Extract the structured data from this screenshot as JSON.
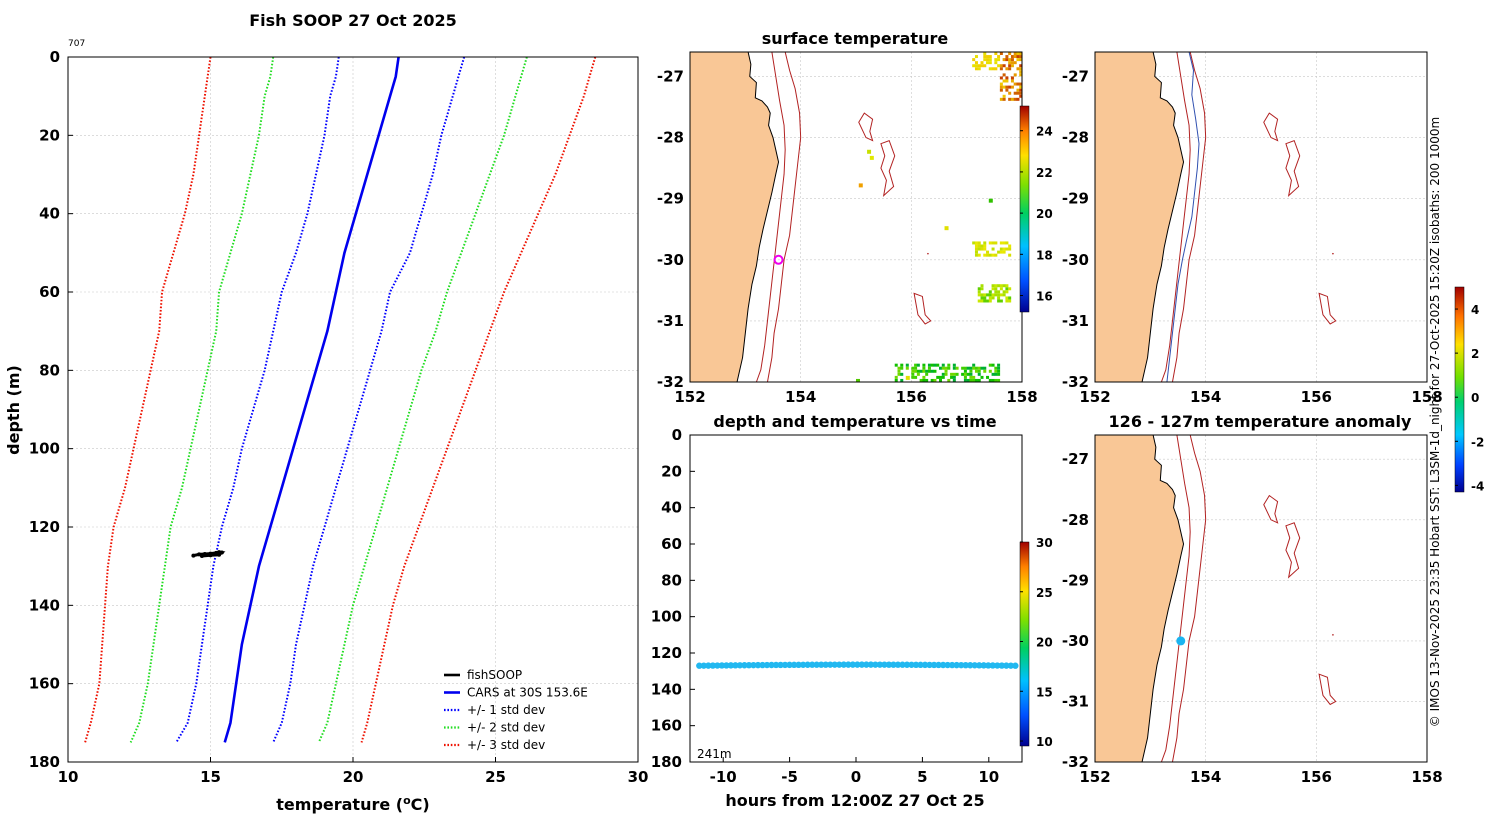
{
  "colors": {
    "land": "#F9C796",
    "coast": "#000000",
    "isobath": "#B22222",
    "cars": "#0000EE",
    "std1": "#0000FF",
    "std2": "#22DD22",
    "std3": "#EE1100",
    "fishsoop": "#000000",
    "marker_surface": "#EE00EE",
    "marker_anom": "#1AB4F0",
    "obs_track": "#22B8F0"
  },
  "chart_data": [
    {
      "id": "profile",
      "type": "line",
      "title": "Fish SOOP 27 Oct 2025",
      "corner_label": "707",
      "xlabel": "temperature (",
      "xlabel_unit_sup": "o",
      "xlabel_tail": "C)",
      "ylabel": "depth (m)",
      "xlim": [
        10,
        30
      ],
      "ylim": [
        0,
        180
      ],
      "y_reversed": true,
      "xticks": [
        10,
        15,
        20,
        25,
        30
      ],
      "yticks": [
        0,
        20,
        40,
        60,
        80,
        100,
        120,
        140,
        160,
        180
      ],
      "grid": true,
      "legend_position": "bottom-right",
      "depth": [
        0,
        5,
        10,
        20,
        30,
        40,
        50,
        60,
        70,
        80,
        90,
        100,
        110,
        120,
        130,
        140,
        150,
        160,
        170,
        175
      ],
      "series": [
        {
          "key": "m3",
          "name": "+/- 3 std dev",
          "style": "dotted",
          "color_key": "std3",
          "legend": true,
          "values": [
            15.0,
            14.9,
            14.8,
            14.6,
            14.4,
            14.1,
            13.7,
            13.3,
            13.2,
            12.9,
            12.6,
            12.3,
            12.0,
            11.6,
            11.4,
            11.3,
            11.2,
            11.1,
            10.8,
            10.6
          ]
        },
        {
          "key": "m2",
          "name": "+/- 2 std dev",
          "style": "dotted",
          "color_key": "std2",
          "legend": false,
          "values": [
            17.2,
            17.1,
            16.9,
            16.7,
            16.4,
            16.1,
            15.7,
            15.3,
            15.2,
            14.9,
            14.6,
            14.3,
            14.0,
            13.6,
            13.4,
            13.2,
            13.0,
            12.8,
            12.5,
            12.2
          ]
        },
        {
          "key": "m1",
          "name": "+/- 1 std dev",
          "style": "dotted",
          "color_key": "std1",
          "legend": false,
          "values": [
            19.5,
            19.4,
            19.2,
            19.0,
            18.7,
            18.4,
            18.0,
            17.5,
            17.2,
            16.9,
            16.5,
            16.1,
            15.8,
            15.4,
            15.1,
            14.9,
            14.7,
            14.5,
            14.2,
            13.8
          ]
        },
        {
          "key": "cars",
          "name": "CARS at 30S 153.6E",
          "style": "solid",
          "color_key": "cars",
          "legend": true,
          "values": [
            21.6,
            21.5,
            21.3,
            20.9,
            20.5,
            20.1,
            19.7,
            19.4,
            19.1,
            18.7,
            18.3,
            17.9,
            17.5,
            17.1,
            16.7,
            16.4,
            16.1,
            15.9,
            15.7,
            15.5
          ]
        },
        {
          "key": "p1",
          "name": "+/- 1 std dev",
          "style": "dotted",
          "color_key": "std1",
          "legend": true,
          "values": [
            23.9,
            23.7,
            23.5,
            23.1,
            22.8,
            22.4,
            22.0,
            21.3,
            21.0,
            20.6,
            20.2,
            19.8,
            19.4,
            19.0,
            18.6,
            18.3,
            18.0,
            17.8,
            17.5,
            17.2
          ]
        },
        {
          "key": "p2",
          "name": "+/- 2 std dev",
          "style": "dotted",
          "color_key": "std2",
          "legend": true,
          "values": [
            26.1,
            25.9,
            25.7,
            25.3,
            24.8,
            24.3,
            23.8,
            23.3,
            22.9,
            22.4,
            22.0,
            21.6,
            21.2,
            20.8,
            20.4,
            20.0,
            19.7,
            19.4,
            19.1,
            18.8
          ]
        },
        {
          "key": "p3",
          "name": "+/- 3 std dev",
          "style": "dotted",
          "color_key": "std3",
          "legend": true,
          "values": [
            28.5,
            28.3,
            28.1,
            27.6,
            27.1,
            26.5,
            25.9,
            25.3,
            24.8,
            24.3,
            23.8,
            23.3,
            22.8,
            22.3,
            21.8,
            21.4,
            21.1,
            20.8,
            20.5,
            20.3
          ]
        }
      ],
      "fishsoop": {
        "name": "fishSOOP",
        "color_key": "fishsoop",
        "points": [
          [
            14.4,
            127.3
          ],
          [
            14.6,
            127.0
          ],
          [
            14.8,
            126.9
          ],
          [
            15.0,
            126.8
          ],
          [
            15.2,
            126.6
          ],
          [
            15.3,
            126.4
          ],
          [
            15.4,
            126.5
          ],
          [
            15.3,
            127.1
          ],
          [
            15.0,
            127.2
          ],
          [
            14.7,
            127.4
          ]
        ]
      },
      "legend_order": [
        "fishSOOP",
        "CARS at 30S 153.6E",
        "+/- 1 std dev",
        "+/- 2 std dev",
        "+/- 3 std dev"
      ]
    },
    {
      "id": "sst_map",
      "type": "heatmap",
      "title": "surface temperature",
      "xlim": [
        152,
        158
      ],
      "ylim": [
        -32,
        -26.6
      ],
      "xticks": [
        152,
        154,
        156,
        158
      ],
      "yticks": [
        -27,
        -28,
        -29,
        -30,
        -31,
        -32
      ],
      "colorbar": {
        "range": [
          15.2,
          25.2
        ],
        "ticks": [
          16,
          18,
          20,
          22,
          24
        ]
      },
      "marker": {
        "lon": 153.6,
        "lat": -30.0,
        "shape": "ring"
      }
    },
    {
      "id": "isobath_map",
      "type": "other",
      "title": "",
      "xlim": [
        152,
        158
      ],
      "ylim": [
        -32,
        -26.6
      ],
      "xticks": [
        152,
        154,
        156,
        158
      ],
      "yticks": [
        -27,
        -28,
        -29,
        -30,
        -31,
        -32
      ],
      "side_note": "© IMOS 13-Nov-2025 23:35 Hobart SST: L3SM-1d_night for 27-Oct-2025 15:20Z isobaths: 200  1000m"
    },
    {
      "id": "time_depth",
      "type": "scatter",
      "title": "depth and temperature vs time",
      "xlabel": "hours from 12:00Z 27 Oct 25",
      "xlim": [
        -12.5,
        12.5
      ],
      "ylim": [
        0,
        180
      ],
      "y_reversed": true,
      "xticks": [
        -10,
        -5,
        0,
        5,
        10
      ],
      "yticks": [
        0,
        20,
        40,
        60,
        80,
        100,
        120,
        140,
        160,
        180
      ],
      "bottom_label": "241m",
      "track": {
        "hours": [
          -11.8,
          12.0
        ],
        "depth_start": 127.0,
        "depth_end": 127.0,
        "temperature": 14.8
      },
      "colorbar": {
        "range": [
          9.5,
          30
        ],
        "ticks": [
          10,
          15,
          20,
          25,
          30
        ]
      }
    },
    {
      "id": "anomaly_map",
      "type": "other",
      "title": "126 - 127m temperature anomaly",
      "xlim": [
        152,
        158
      ],
      "ylim": [
        -32,
        -26.6
      ],
      "xticks": [
        152,
        154,
        156,
        158
      ],
      "yticks": [
        -27,
        -28,
        -29,
        -30,
        -31,
        -32
      ],
      "marker": {
        "lon": 153.55,
        "lat": -30.0,
        "shape": "dot",
        "anomaly": -1.3
      },
      "colorbar": {
        "range": [
          -4.3,
          5.0
        ],
        "ticks": [
          -4,
          -2,
          0,
          2,
          4
        ]
      }
    }
  ]
}
